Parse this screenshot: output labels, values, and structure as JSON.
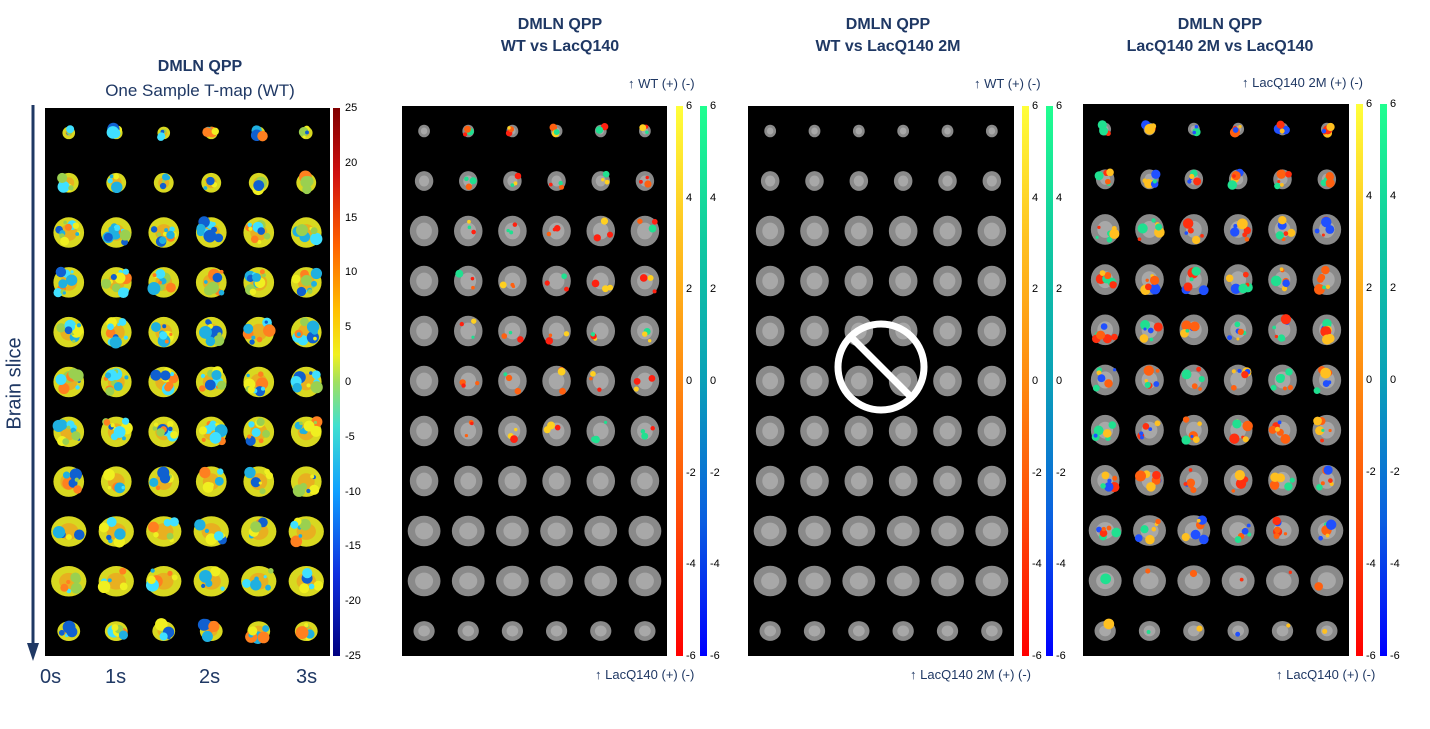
{
  "panels": [
    {
      "title": "DMLN QPP",
      "subtitle": "One Sample T-map (WT)",
      "ticks": [
        "25",
        "20",
        "15",
        "10",
        "5",
        "0",
        "-5",
        "-10",
        "-15",
        "-20",
        "-25"
      ],
      "side_label": "Brain slice",
      "time_labels": [
        "0s",
        "1s",
        "2s",
        "3s"
      ]
    },
    {
      "title": "DMLN QPP",
      "subtitle": "WT vs LacQ140",
      "top_label": "↑ WT  (+)  (-)",
      "bottom_label": "↑ LacQ140 (+)  (-)",
      "ticks": [
        "6",
        "4",
        "2",
        "0",
        "-2",
        "-4",
        "-6"
      ]
    },
    {
      "title": "DMLN QPP",
      "subtitle": "WT vs LacQ140 2M",
      "top_label": "↑ WT  (+)  (-)",
      "bottom_label": "↑ LacQ140 2M  (+)  (-)",
      "ticks": [
        "6",
        "4",
        "2",
        "0",
        "-2",
        "-4",
        "-6"
      ]
    },
    {
      "title": "DMLN QPP",
      "subtitle": "LacQ140 2M vs LacQ140",
      "top_label": "↑ LacQ140 2M  (+)  (-)",
      "bottom_label": "↑ LacQ140 (+)  (-)",
      "ticks": [
        "6",
        "4",
        "2",
        "0",
        "-2",
        "-4",
        "-6"
      ]
    }
  ]
}
